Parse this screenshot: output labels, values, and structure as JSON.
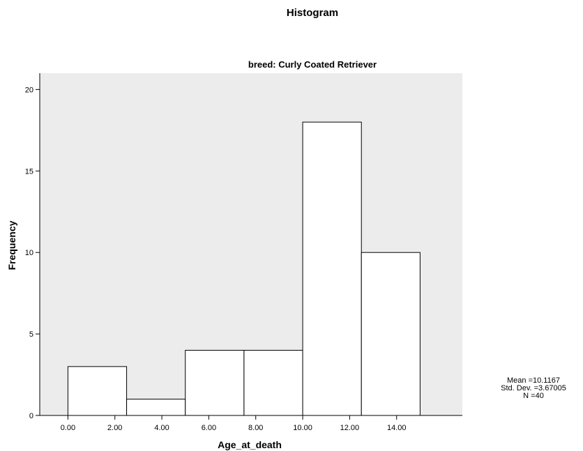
{
  "chart_data": {
    "type": "bar",
    "title": "Histogram",
    "subtitle": "breed: Curly Coated Retriever",
    "xlabel": "Age_at_death",
    "ylabel": "Frequency",
    "xlim": [
      -1.2,
      16.8
    ],
    "ylim": [
      0,
      21
    ],
    "x_ticks": [
      0,
      2,
      4,
      6,
      8,
      10,
      12,
      14
    ],
    "x_tick_labels": [
      "0.00",
      "2.00",
      "4.00",
      "6.00",
      "8.00",
      "10.00",
      "12.00",
      "14.00"
    ],
    "y_ticks": [
      0,
      5,
      10,
      15,
      20
    ],
    "y_tick_labels": [
      "0",
      "5",
      "10",
      "15",
      "20"
    ],
    "bins": [
      {
        "start": 0.0,
        "end": 2.5,
        "count": 3
      },
      {
        "start": 2.5,
        "end": 5.0,
        "count": 1
      },
      {
        "start": 5.0,
        "end": 7.5,
        "count": 4
      },
      {
        "start": 7.5,
        "end": 10.0,
        "count": 4
      },
      {
        "start": 10.0,
        "end": 12.5,
        "count": 18
      },
      {
        "start": 12.5,
        "end": 15.0,
        "count": 10
      }
    ],
    "stats": {
      "mean": "Mean =10.1167",
      "std_dev": "Std. Dev. =3.67005",
      "n": "N =40"
    },
    "colors": {
      "plot_background": "#ececec",
      "bar_fill": "#ffffff",
      "bar_stroke": "#000000"
    },
    "grid": false
  }
}
